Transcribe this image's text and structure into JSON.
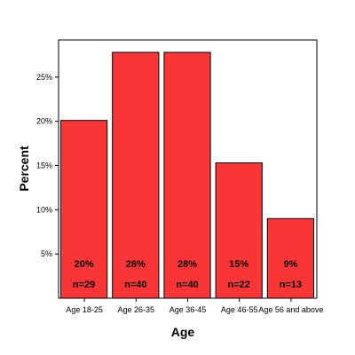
{
  "chart_data": {
    "type": "bar",
    "xlabel": "Age",
    "ylabel": "Percent",
    "categories": [
      "Age 18-25",
      "Age 26-35",
      "Age 36-45",
      "Age 46-55",
      "Age 56 and above"
    ],
    "values": [
      20.1,
      27.8,
      27.8,
      15.3,
      9.0
    ],
    "percent_labels": [
      "20%",
      "28%",
      "28%",
      "15%",
      "9%"
    ],
    "count_labels": [
      "n=29",
      "n=40",
      "n=40",
      "n=22",
      "n=13"
    ],
    "y_ticks": [
      5,
      10,
      15,
      20,
      25
    ],
    "y_tick_labels": [
      "5%",
      "10%",
      "15%",
      "20%",
      "25%"
    ],
    "ylim": [
      0,
      29.2
    ],
    "grid": false,
    "bar_color": "#f93535"
  }
}
